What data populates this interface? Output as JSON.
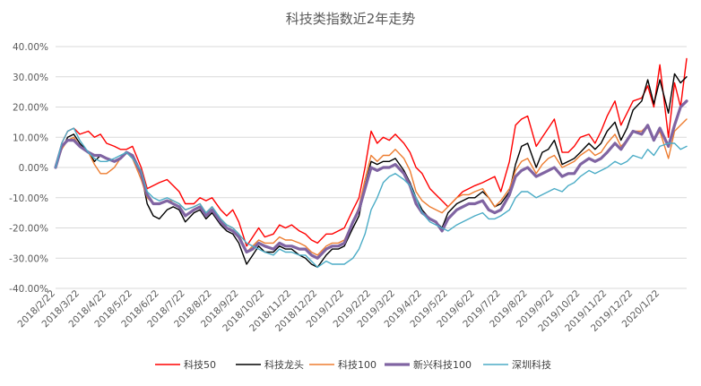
{
  "chart_data": {
    "type": "line",
    "title": "科技类指数近2年走势",
    "xlabel": "",
    "ylabel": "",
    "ylim": [
      -40,
      40
    ],
    "yticks": [
      40,
      30,
      20,
      10,
      0,
      -10,
      -20,
      -30,
      -40
    ],
    "ytick_labels": [
      "40.00%",
      "30.00%",
      "20.00%",
      "10.00%",
      "0.00%",
      "-10.00%",
      "-20.00%",
      "-30.00%",
      "-40.00%"
    ],
    "xtick_labels": [
      "2018/2/22",
      "2018/3/22",
      "2018/4/22",
      "2018/5/22",
      "2018/6/22",
      "2018/7/22",
      "2018/8/22",
      "2018/9/22",
      "2018/10/22",
      "2018/11/22",
      "2018/12/22",
      "2019/1/22",
      "2019/2/22",
      "2019/3/22",
      "2019/4/22",
      "2019/5/22",
      "2019/6/22",
      "2019/7/22",
      "2019/8/22",
      "2019/9/22",
      "2019/10/22",
      "2019/11/22",
      "2019/12/22",
      "2020/1/22"
    ],
    "x_dates": [
      "2018/2/22",
      "2018/3/1",
      "2018/3/8",
      "2018/3/15",
      "2018/3/22",
      "2018/4/1",
      "2018/4/8",
      "2018/4/15",
      "2018/4/22",
      "2018/5/1",
      "2018/5/8",
      "2018/5/15",
      "2018/5/22",
      "2018/6/1",
      "2018/6/8",
      "2018/6/15",
      "2018/6/22",
      "2018/7/1",
      "2018/7/8",
      "2018/7/15",
      "2018/7/22",
      "2018/8/1",
      "2018/8/8",
      "2018/8/15",
      "2018/8/22",
      "2018/9/1",
      "2018/9/8",
      "2018/9/15",
      "2018/9/22",
      "2018/10/1",
      "2018/10/8",
      "2018/10/15",
      "2018/10/22",
      "2018/11/1",
      "2018/11/8",
      "2018/11/15",
      "2018/11/22",
      "2018/12/1",
      "2018/12/8",
      "2018/12/15",
      "2018/12/22",
      "2019/1/1",
      "2019/1/8",
      "2019/1/15",
      "2019/1/22",
      "2019/2/1",
      "2019/2/8",
      "2019/2/15",
      "2019/2/22",
      "2019/3/1",
      "2019/3/8",
      "2019/3/15",
      "2019/3/22",
      "2019/4/1",
      "2019/4/8",
      "2019/4/15",
      "2019/4/22",
      "2019/5/1",
      "2019/5/8",
      "2019/5/15",
      "2019/5/22",
      "2019/6/1",
      "2019/6/8",
      "2019/6/15",
      "2019/6/22",
      "2019/7/1",
      "2019/7/8",
      "2019/7/15",
      "2019/7/22",
      "2019/8/1",
      "2019/8/8",
      "2019/8/15",
      "2019/8/22",
      "2019/9/1",
      "2019/9/8",
      "2019/9/15",
      "2019/9/22",
      "2019/10/1",
      "2019/10/8",
      "2019/10/15",
      "2019/10/22",
      "2019/11/1",
      "2019/11/8",
      "2019/11/15",
      "2019/11/22",
      "2019/12/1",
      "2019/12/8",
      "2019/12/15",
      "2019/12/22",
      "2020/1/1",
      "2020/1/8",
      "2020/1/15",
      "2020/1/22",
      "2020/2/1",
      "2020/2/8",
      "2020/2/15",
      "2020/2/22"
    ],
    "series": [
      {
        "name": "科技50",
        "color": "#ff0000",
        "width": 1.4,
        "values": [
          0,
          8,
          12,
          13,
          11,
          12,
          10,
          11,
          8,
          7,
          6,
          6,
          7,
          0,
          -7,
          -6,
          -5,
          -4,
          -6,
          -8,
          -12,
          -12,
          -10,
          -11,
          -10,
          -14,
          -16,
          -14,
          -18,
          -26,
          -23,
          -20,
          -23,
          -22,
          -19,
          -20,
          -19,
          -21,
          -22,
          -24,
          -25,
          -22,
          -22,
          -21,
          -20,
          -14,
          -10,
          0,
          12,
          8,
          10,
          9,
          11,
          8,
          5,
          0,
          -2,
          -7,
          -9,
          -11,
          -13,
          -10,
          -8,
          -7,
          -6,
          -5,
          -4,
          -3,
          -8,
          2,
          14,
          16,
          17,
          7,
          10,
          13,
          16,
          5,
          5,
          7,
          10,
          11,
          8,
          12,
          17,
          22,
          14,
          18,
          22,
          23,
          27,
          20,
          34,
          10,
          28,
          20,
          36
        ]
      },
      {
        "name": "科技龙头",
        "color": "#000000",
        "width": 1.4,
        "values": [
          0,
          6,
          10,
          11,
          8,
          5,
          2,
          4,
          3,
          2,
          3,
          5,
          3,
          -2,
          -12,
          -16,
          -17,
          -14,
          -13,
          -14,
          -18,
          -15,
          -14,
          -17,
          -15,
          -19,
          -21,
          -22,
          -25,
          -32,
          -29,
          -26,
          -28,
          -28,
          -26,
          -27,
          -27,
          -29,
          -30,
          -32,
          -33,
          -29,
          -27,
          -27,
          -26,
          -20,
          -16,
          -6,
          2,
          1,
          2,
          2,
          3,
          -1,
          -5,
          -10,
          -14,
          -17,
          -18,
          -20,
          -15,
          -12,
          -11,
          -10,
          -10,
          -8,
          -10,
          -13,
          -12,
          -8,
          1,
          7,
          8,
          0,
          5,
          6,
          9,
          1,
          2,
          3,
          5,
          8,
          6,
          8,
          12,
          15,
          9,
          13,
          19,
          22,
          29,
          21,
          29,
          18,
          31,
          28,
          30
        ]
      },
      {
        "name": "科技100",
        "color": "#ed7d31",
        "width": 1.4,
        "values": [
          0,
          6,
          9,
          10,
          7,
          5,
          1,
          -2,
          -2,
          0,
          3,
          5,
          3,
          -4,
          -10,
          -12,
          -12,
          -11,
          -11,
          -12,
          -14,
          -13,
          -12,
          -15,
          -13,
          -17,
          -19,
          -20,
          -22,
          -28,
          -26,
          -24,
          -25,
          -25,
          -23,
          -24,
          -24,
          -25,
          -26,
          -28,
          -29,
          -26,
          -25,
          -25,
          -24,
          -18,
          -13,
          -4,
          4,
          2,
          4,
          4,
          6,
          3,
          -1,
          -8,
          -11,
          -13,
          -14,
          -15,
          -13,
          -10,
          -9,
          -9,
          -8,
          -7,
          -10,
          -13,
          -11,
          -7,
          -1,
          2,
          3,
          -2,
          1,
          3,
          4,
          0,
          1,
          2,
          4,
          6,
          4,
          5,
          8,
          11,
          7,
          9,
          12,
          12,
          14,
          9,
          12,
          3,
          12,
          14,
          16
        ]
      },
      {
        "name": "新兴科技100",
        "color": "#8064a2",
        "width": 3.2,
        "values": [
          0,
          7,
          9,
          9,
          7,
          5,
          4,
          4,
          3,
          2,
          3,
          5,
          4,
          -2,
          -9,
          -12,
          -12,
          -11,
          -12,
          -13,
          -16,
          -14,
          -13,
          -16,
          -14,
          -18,
          -20,
          -21,
          -23,
          -28,
          -27,
          -25,
          -26,
          -27,
          -25,
          -26,
          -26,
          -27,
          -27,
          -29,
          -30,
          -27,
          -26,
          -26,
          -25,
          -18,
          -14,
          -7,
          0,
          -1,
          0,
          0,
          1,
          -2,
          -6,
          -12,
          -15,
          -17,
          -18,
          -21,
          -17,
          -14,
          -13,
          -12,
          -12,
          -11,
          -14,
          -15,
          -14,
          -9,
          -3,
          -1,
          0,
          -3,
          -2,
          -1,
          0,
          -3,
          -2,
          -2,
          1,
          3,
          2,
          3,
          5,
          8,
          6,
          9,
          12,
          11,
          14,
          9,
          13,
          7,
          14,
          20,
          22
        ]
      },
      {
        "name": "深圳科技",
        "color": "#4bacc6",
        "width": 1.4,
        "values": [
          0,
          8,
          12,
          13,
          9,
          5,
          3,
          2,
          2,
          3,
          4,
          5,
          3,
          -1,
          -8,
          -10,
          -11,
          -10,
          -11,
          -12,
          -14,
          -13,
          -12,
          -15,
          -13,
          -17,
          -19,
          -20,
          -22,
          -25,
          -26,
          -27,
          -28,
          -29,
          -27,
          -28,
          -28,
          -29,
          -29,
          -31,
          -33,
          -31,
          -32,
          -32,
          -32,
          -30,
          -27,
          -22,
          -14,
          -10,
          -5,
          -3,
          -2,
          -4,
          -6,
          -10,
          -15,
          -18,
          -19,
          -20,
          -21,
          -19,
          -18,
          -17,
          -16,
          -15,
          -17,
          -17,
          -16,
          -14,
          -10,
          -8,
          -8,
          -10,
          -9,
          -8,
          -7,
          -8,
          -6,
          -5,
          -3,
          -1,
          -2,
          -1,
          0,
          2,
          1,
          2,
          4,
          3,
          6,
          4,
          7,
          8,
          8,
          6,
          7
        ]
      }
    ],
    "legend": {
      "position": "bottom"
    },
    "grid": true
  }
}
